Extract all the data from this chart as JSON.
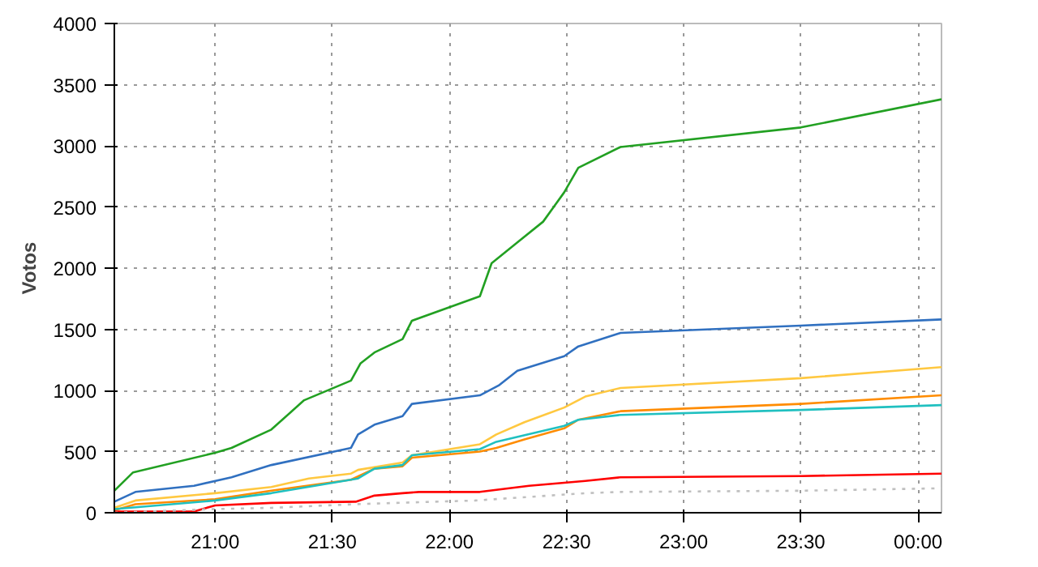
{
  "chart_data": {
    "type": "line",
    "ylabel": "Votos",
    "xlim": [
      20.57,
      24.1
    ],
    "ylim": [
      0,
      4000
    ],
    "xticks": [
      {
        "value": 21,
        "label": "21:00"
      },
      {
        "value": 21.5,
        "label": "21:30"
      },
      {
        "value": 22,
        "label": "22:00"
      },
      {
        "value": 22.5,
        "label": "22:30"
      },
      {
        "value": 23,
        "label": "23:00"
      },
      {
        "value": 23.5,
        "label": "23:30"
      },
      {
        "value": 24,
        "label": "00:00"
      }
    ],
    "yticks": [
      0,
      500,
      1000,
      1500,
      2000,
      2500,
      3000,
      3500,
      4000
    ],
    "grid": true,
    "marker": "none",
    "line_style": "solid",
    "series": [
      {
        "color": "#22a022",
        "x": [
          20.57,
          20.65,
          21.0,
          21.07,
          21.24,
          21.38,
          21.58,
          21.62,
          21.68,
          21.8,
          21.84,
          22.13,
          22.18,
          22.29,
          22.4,
          22.49,
          22.55,
          22.73,
          23.5,
          24.1
        ],
        "values": [
          180,
          330,
          490,
          530,
          680,
          920,
          1080,
          1220,
          1310,
          1420,
          1570,
          1770,
          2040,
          2210,
          2380,
          2620,
          2820,
          2990,
          3150,
          3380
        ]
      },
      {
        "color": "#3070c0",
        "x": [
          20.57,
          20.66,
          20.91,
          21.07,
          21.24,
          21.58,
          21.61,
          21.68,
          21.8,
          21.84,
          22.13,
          22.21,
          22.29,
          22.49,
          22.55,
          22.73,
          23.5,
          24.1
        ],
        "values": [
          90,
          170,
          220,
          290,
          390,
          530,
          640,
          720,
          790,
          890,
          960,
          1040,
          1160,
          1280,
          1360,
          1470,
          1530,
          1580
        ]
      },
      {
        "color": "#ffc840",
        "x": [
          20.57,
          20.66,
          21.0,
          21.24,
          21.4,
          21.58,
          21.61,
          21.8,
          21.84,
          22.13,
          22.2,
          22.32,
          22.49,
          22.58,
          22.73,
          23.5,
          24.1
        ],
        "values": [
          40,
          100,
          160,
          210,
          280,
          320,
          350,
          410,
          470,
          560,
          640,
          740,
          860,
          950,
          1020,
          1100,
          1190
        ]
      },
      {
        "color": "#ff8c00",
        "x": [
          20.57,
          20.66,
          21.0,
          21.24,
          21.58,
          21.68,
          21.8,
          21.84,
          22.13,
          22.2,
          22.32,
          22.49,
          22.55,
          22.73,
          23.5,
          24.1
        ],
        "values": [
          20,
          70,
          110,
          180,
          270,
          360,
          380,
          450,
          500,
          530,
          600,
          690,
          760,
          830,
          890,
          960
        ]
      },
      {
        "color": "#20c0c0",
        "x": [
          20.57,
          21.0,
          21.24,
          21.58,
          21.61,
          21.68,
          21.8,
          21.84,
          22.13,
          22.2,
          22.49,
          22.55,
          22.73,
          23.5,
          24.1
        ],
        "values": [
          30,
          100,
          160,
          270,
          280,
          360,
          390,
          470,
          520,
          580,
          710,
          760,
          800,
          840,
          880
        ]
      },
      {
        "color": "#ff0000",
        "x": [
          20.57,
          20.91,
          21.0,
          21.24,
          21.6,
          21.68,
          21.8,
          21.87,
          22.13,
          22.34,
          22.58,
          22.73,
          23.5,
          24.1
        ],
        "values": [
          10,
          10,
          60,
          80,
          90,
          140,
          160,
          170,
          170,
          220,
          260,
          290,
          300,
          320
        ]
      },
      {
        "color": "#c0c0c0",
        "line_style": "dotted",
        "x": [
          20.57,
          21.0,
          21.24,
          21.6,
          22.11,
          22.58,
          22.73,
          23.5,
          24.1
        ],
        "values": [
          0,
          30,
          40,
          70,
          100,
          160,
          170,
          180,
          200
        ]
      }
    ]
  }
}
